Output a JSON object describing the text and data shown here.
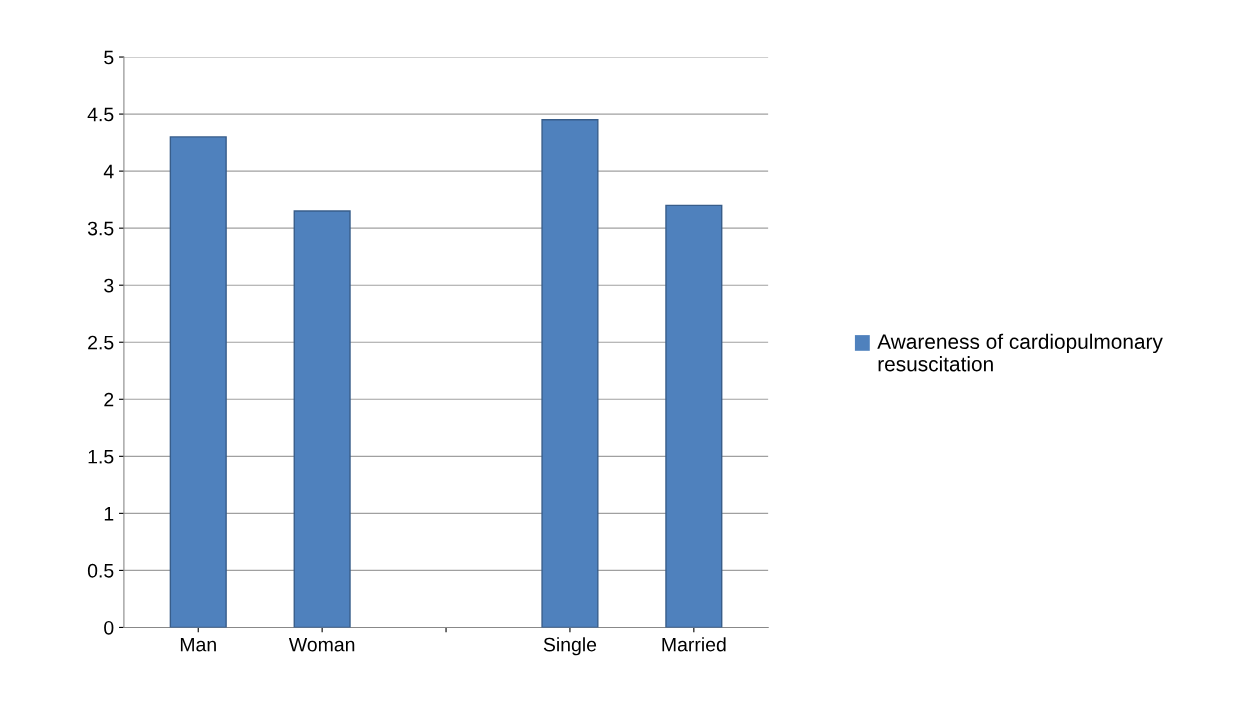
{
  "chart_data": {
    "type": "bar",
    "categories": [
      "Man",
      "Woman",
      null,
      "Single",
      "Married"
    ],
    "series": [
      {
        "name": "Awareness of cardiopulmonary resuscitation",
        "color": "#4f81bd",
        "values": [
          4.3,
          3.65,
          null,
          4.45,
          3.7
        ]
      }
    ],
    "ylim": [
      0,
      5
    ],
    "yticks": [
      0,
      0.5,
      1,
      1.5,
      2,
      2.5,
      3,
      3.5,
      4,
      4.5,
      5
    ],
    "grid": "y",
    "legend": "right"
  }
}
